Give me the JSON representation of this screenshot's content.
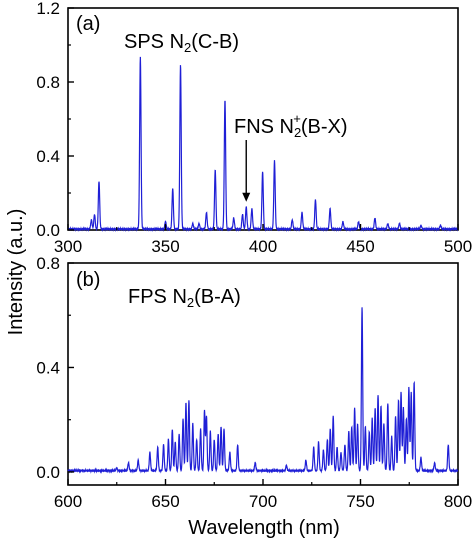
{
  "chart_data": [
    {
      "type": "line",
      "panel_label": "(a)",
      "xlim": [
        300,
        500
      ],
      "ylim": [
        0,
        1.2
      ],
      "x_ticks": [
        300,
        350,
        400,
        450,
        500
      ],
      "y_ticks": [
        0.0,
        0.4,
        0.8,
        1.2
      ],
      "y_tick_labels": [
        "0.0",
        "0.4",
        "0.8",
        "1.2"
      ],
      "grid": false,
      "color": "#1f1fd6",
      "baseline": 0.005,
      "peaks": [
        [
          312.0,
          0.05
        ],
        [
          313.6,
          0.08
        ],
        [
          315.9,
          0.26
        ],
        [
          337.1,
          0.93
        ],
        [
          350.0,
          0.04
        ],
        [
          353.7,
          0.22
        ],
        [
          357.7,
          0.89
        ],
        [
          364.0,
          0.03
        ],
        [
          367.2,
          0.03
        ],
        [
          371.0,
          0.09
        ],
        [
          375.5,
          0.32
        ],
        [
          380.5,
          0.7
        ],
        [
          385.0,
          0.06
        ],
        [
          389.5,
          0.08
        ],
        [
          391.4,
          0.12
        ],
        [
          394.3,
          0.11
        ],
        [
          399.8,
          0.31
        ],
        [
          405.9,
          0.37
        ],
        [
          415.0,
          0.05
        ],
        [
          420.0,
          0.09
        ],
        [
          426.9,
          0.16
        ],
        [
          434.4,
          0.11
        ],
        [
          441.0,
          0.04
        ],
        [
          449.0,
          0.04
        ],
        [
          457.4,
          0.06
        ],
        [
          464.0,
          0.03
        ],
        [
          470.0,
          0.03
        ],
        [
          481.0,
          0.02
        ],
        [
          491.0,
          0.02
        ]
      ],
      "annotations": [
        {
          "main": "SPS N",
          "sub": "2",
          "rest": "(C-B)"
        },
        {
          "main": "FNS N",
          "sub": "2",
          "sup": "+",
          "rest": "(B-X)",
          "arrow_to": [
            391.4,
            0.12
          ]
        }
      ]
    },
    {
      "type": "line",
      "panel_label": "(b)",
      "xlim": [
        600,
        800
      ],
      "ylim": [
        -0.05,
        0.8
      ],
      "x_ticks": [
        600,
        650,
        700,
        750,
        800
      ],
      "x_tick_labels": [
        "600",
        "650",
        "700",
        "750",
        "800"
      ],
      "y_ticks": [
        0.0,
        0.4,
        0.8
      ],
      "y_tick_labels": [
        "0.0",
        "0.4",
        "0.8"
      ],
      "grid": false,
      "color": "#1f1fd6",
      "baseline": 0.005,
      "peaks": [
        [
          625.0,
          0.01
        ],
        [
          631.0,
          0.03
        ],
        [
          636.0,
          0.04
        ],
        [
          642.0,
          0.07
        ],
        [
          646.0,
          0.09
        ],
        [
          649.0,
          0.1
        ],
        [
          651.5,
          0.12
        ],
        [
          653.5,
          0.16
        ],
        [
          655.0,
          0.11
        ],
        [
          657.0,
          0.14
        ],
        [
          659.0,
          0.2
        ],
        [
          660.5,
          0.26
        ],
        [
          662.0,
          0.27
        ],
        [
          664.0,
          0.18
        ],
        [
          666.0,
          0.12
        ],
        [
          668.0,
          0.16
        ],
        [
          670.0,
          0.23
        ],
        [
          671.0,
          0.21
        ],
        [
          673.0,
          0.15
        ],
        [
          675.0,
          0.12
        ],
        [
          677.0,
          0.14
        ],
        [
          678.5,
          0.17
        ],
        [
          680.0,
          0.16
        ],
        [
          683.0,
          0.07
        ],
        [
          687.0,
          0.1
        ],
        [
          696.0,
          0.03
        ],
        [
          712.0,
          0.02
        ],
        [
          722.0,
          0.04
        ],
        [
          726.0,
          0.09
        ],
        [
          728.5,
          0.11
        ],
        [
          731.0,
          0.08
        ],
        [
          733.0,
          0.12
        ],
        [
          734.5,
          0.16
        ],
        [
          736.0,
          0.21
        ],
        [
          738.0,
          0.09
        ],
        [
          740.0,
          0.07
        ],
        [
          742.0,
          0.1
        ],
        [
          744.0,
          0.15
        ],
        [
          745.5,
          0.17
        ],
        [
          747.0,
          0.24
        ],
        [
          748.5,
          0.18
        ],
        [
          750.8,
          0.63
        ],
        [
          752.5,
          0.17
        ],
        [
          754.5,
          0.15
        ],
        [
          756.0,
          0.2
        ],
        [
          757.5,
          0.24
        ],
        [
          759.0,
          0.29
        ],
        [
          760.5,
          0.25
        ],
        [
          762.0,
          0.18
        ],
        [
          764.0,
          0.26
        ],
        [
          766.0,
          0.13
        ],
        [
          768.0,
          0.21
        ],
        [
          769.5,
          0.27
        ],
        [
          770.8,
          0.3
        ],
        [
          772.0,
          0.24
        ],
        [
          773.5,
          0.2
        ],
        [
          774.8,
          0.32
        ],
        [
          776.0,
          0.3
        ],
        [
          777.5,
          0.34
        ],
        [
          781.0,
          0.05
        ],
        [
          788.0,
          0.03
        ],
        [
          795.0,
          0.1
        ]
      ],
      "annotations": [
        {
          "main": "FPS N",
          "sub": "2",
          "rest": "(B-A)"
        }
      ]
    }
  ],
  "shared": {
    "xlabel": "Wavelength (nm)",
    "ylabel": "Intensity (a.u.)"
  }
}
